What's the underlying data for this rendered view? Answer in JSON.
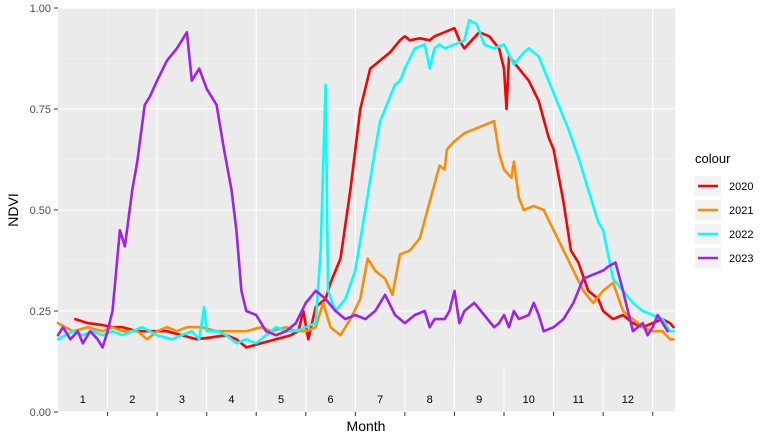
{
  "chart_data": {
    "type": "line",
    "title": "",
    "xlabel": "Month",
    "ylabel": "NDVI",
    "xlim": [
      0,
      12.45
    ],
    "ylim": [
      0,
      1
    ],
    "y_ticks": [
      "0.00",
      "0.25",
      "0.50",
      "0.75",
      "1.00"
    ],
    "month_labels": [
      "1",
      "2",
      "3",
      "4",
      "5",
      "6",
      "7",
      "8",
      "9",
      "10",
      "11",
      "12"
    ],
    "grid": true,
    "legend": {
      "title": "colour",
      "position": "right"
    },
    "series": [
      {
        "name": "2020",
        "color": "#ff0000",
        "points": [
          [
            0.35,
            0.23
          ],
          [
            0.6,
            0.22
          ],
          [
            0.9,
            0.215
          ],
          [
            1.1,
            0.21
          ],
          [
            1.3,
            0.21
          ],
          [
            1.6,
            0.2
          ],
          [
            1.9,
            0.2
          ],
          [
            2.2,
            0.2
          ],
          [
            2.5,
            0.19
          ],
          [
            2.8,
            0.18
          ],
          [
            3.1,
            0.185
          ],
          [
            3.4,
            0.19
          ],
          [
            3.6,
            0.18
          ],
          [
            3.8,
            0.16
          ],
          [
            4.1,
            0.17
          ],
          [
            4.4,
            0.18
          ],
          [
            4.7,
            0.19
          ],
          [
            4.85,
            0.2
          ],
          [
            4.95,
            0.25
          ],
          [
            5.05,
            0.18
          ],
          [
            5.2,
            0.26
          ],
          [
            5.4,
            0.28
          ],
          [
            5.5,
            0.32
          ],
          [
            5.7,
            0.38
          ],
          [
            5.9,
            0.55
          ],
          [
            6.1,
            0.75
          ],
          [
            6.3,
            0.85
          ],
          [
            6.5,
            0.87
          ],
          [
            6.7,
            0.89
          ],
          [
            6.9,
            0.92
          ],
          [
            7.0,
            0.93
          ],
          [
            7.1,
            0.92
          ],
          [
            7.3,
            0.925
          ],
          [
            7.5,
            0.92
          ],
          [
            7.6,
            0.93
          ],
          [
            7.8,
            0.94
          ],
          [
            8.0,
            0.95
          ],
          [
            8.1,
            0.92
          ],
          [
            8.2,
            0.9
          ],
          [
            8.35,
            0.92
          ],
          [
            8.5,
            0.94
          ],
          [
            8.7,
            0.93
          ],
          [
            8.9,
            0.9
          ],
          [
            9.0,
            0.85
          ],
          [
            9.05,
            0.75
          ],
          [
            9.1,
            0.88
          ],
          [
            9.3,
            0.85
          ],
          [
            9.5,
            0.82
          ],
          [
            9.7,
            0.77
          ],
          [
            9.9,
            0.68
          ],
          [
            10.0,
            0.65
          ],
          [
            10.2,
            0.52
          ],
          [
            10.35,
            0.4
          ],
          [
            10.5,
            0.37
          ],
          [
            10.7,
            0.3
          ],
          [
            10.9,
            0.28
          ],
          [
            11.0,
            0.25
          ],
          [
            11.2,
            0.23
          ],
          [
            11.4,
            0.24
          ],
          [
            11.6,
            0.22
          ],
          [
            11.8,
            0.21
          ],
          [
            12.0,
            0.22
          ],
          [
            12.2,
            0.23
          ],
          [
            12.35,
            0.22
          ],
          [
            12.42,
            0.21
          ]
        ]
      },
      {
        "name": "2021",
        "color": "#ff8c00",
        "points": [
          [
            0,
            0.22
          ],
          [
            0.3,
            0.2
          ],
          [
            0.6,
            0.21
          ],
          [
            0.9,
            0.2
          ],
          [
            1.1,
            0.21
          ],
          [
            1.3,
            0.2
          ],
          [
            1.6,
            0.2
          ],
          [
            1.8,
            0.18
          ],
          [
            2.0,
            0.2
          ],
          [
            2.2,
            0.21
          ],
          [
            2.4,
            0.2
          ],
          [
            2.6,
            0.21
          ],
          [
            2.9,
            0.21
          ],
          [
            3.2,
            0.2
          ],
          [
            3.5,
            0.2
          ],
          [
            3.8,
            0.2
          ],
          [
            4.1,
            0.21
          ],
          [
            4.3,
            0.2
          ],
          [
            4.6,
            0.21
          ],
          [
            4.8,
            0.2
          ],
          [
            5.0,
            0.2
          ],
          [
            5.2,
            0.21
          ],
          [
            5.35,
            0.27
          ],
          [
            5.5,
            0.21
          ],
          [
            5.7,
            0.19
          ],
          [
            5.9,
            0.23
          ],
          [
            6.1,
            0.28
          ],
          [
            6.25,
            0.38
          ],
          [
            6.4,
            0.35
          ],
          [
            6.6,
            0.33
          ],
          [
            6.75,
            0.29
          ],
          [
            6.9,
            0.39
          ],
          [
            7.1,
            0.4
          ],
          [
            7.3,
            0.43
          ],
          [
            7.5,
            0.52
          ],
          [
            7.7,
            0.61
          ],
          [
            7.8,
            0.6
          ],
          [
            7.85,
            0.65
          ],
          [
            8.0,
            0.67
          ],
          [
            8.2,
            0.69
          ],
          [
            8.4,
            0.7
          ],
          [
            8.6,
            0.71
          ],
          [
            8.8,
            0.72
          ],
          [
            8.9,
            0.64
          ],
          [
            9.0,
            0.6
          ],
          [
            9.15,
            0.58
          ],
          [
            9.2,
            0.62
          ],
          [
            9.3,
            0.53
          ],
          [
            9.4,
            0.5
          ],
          [
            9.6,
            0.51
          ],
          [
            9.8,
            0.5
          ],
          [
            10.0,
            0.45
          ],
          [
            10.2,
            0.4
          ],
          [
            10.4,
            0.35
          ],
          [
            10.6,
            0.3
          ],
          [
            10.8,
            0.27
          ],
          [
            11.0,
            0.3
          ],
          [
            11.2,
            0.32
          ],
          [
            11.4,
            0.25
          ],
          [
            11.6,
            0.23
          ],
          [
            11.8,
            0.21
          ],
          [
            12.0,
            0.2
          ],
          [
            12.2,
            0.2
          ],
          [
            12.35,
            0.18
          ],
          [
            12.42,
            0.18
          ]
        ]
      },
      {
        "name": "2022",
        "color": "#00ffff",
        "points": [
          [
            0,
            0.18
          ],
          [
            0.3,
            0.2
          ],
          [
            0.5,
            0.19
          ],
          [
            0.7,
            0.2
          ],
          [
            0.9,
            0.19
          ],
          [
            1.1,
            0.2
          ],
          [
            1.3,
            0.19
          ],
          [
            1.5,
            0.2
          ],
          [
            1.7,
            0.21
          ],
          [
            2.0,
            0.19
          ],
          [
            2.3,
            0.18
          ],
          [
            2.5,
            0.19
          ],
          [
            2.7,
            0.2
          ],
          [
            2.85,
            0.18
          ],
          [
            2.95,
            0.26
          ],
          [
            3.0,
            0.2
          ],
          [
            3.2,
            0.2
          ],
          [
            3.4,
            0.19
          ],
          [
            3.6,
            0.17
          ],
          [
            3.8,
            0.18
          ],
          [
            4.0,
            0.17
          ],
          [
            4.2,
            0.19
          ],
          [
            4.4,
            0.21
          ],
          [
            4.6,
            0.2
          ],
          [
            4.8,
            0.2
          ],
          [
            5.0,
            0.21
          ],
          [
            5.2,
            0.22
          ],
          [
            5.3,
            0.4
          ],
          [
            5.4,
            0.81
          ],
          [
            5.45,
            0.3
          ],
          [
            5.6,
            0.25
          ],
          [
            5.8,
            0.28
          ],
          [
            6.0,
            0.35
          ],
          [
            6.2,
            0.5
          ],
          [
            6.4,
            0.65
          ],
          [
            6.5,
            0.72
          ],
          [
            6.6,
            0.75
          ],
          [
            6.7,
            0.78
          ],
          [
            6.8,
            0.81
          ],
          [
            6.9,
            0.82
          ],
          [
            7.0,
            0.85
          ],
          [
            7.2,
            0.9
          ],
          [
            7.4,
            0.91
          ],
          [
            7.5,
            0.85
          ],
          [
            7.6,
            0.9
          ],
          [
            7.7,
            0.91
          ],
          [
            7.8,
            0.9
          ],
          [
            8.0,
            0.91
          ],
          [
            8.2,
            0.92
          ],
          [
            8.3,
            0.97
          ],
          [
            8.45,
            0.96
          ],
          [
            8.6,
            0.91
          ],
          [
            8.8,
            0.9
          ],
          [
            9.0,
            0.91
          ],
          [
            9.2,
            0.86
          ],
          [
            9.4,
            0.89
          ],
          [
            9.5,
            0.9
          ],
          [
            9.7,
            0.88
          ],
          [
            9.9,
            0.82
          ],
          [
            10.1,
            0.76
          ],
          [
            10.3,
            0.7
          ],
          [
            10.5,
            0.63
          ],
          [
            10.7,
            0.55
          ],
          [
            10.9,
            0.47
          ],
          [
            11.0,
            0.45
          ],
          [
            11.2,
            0.33
          ],
          [
            11.4,
            0.3
          ],
          [
            11.6,
            0.27
          ],
          [
            11.8,
            0.25
          ],
          [
            12.0,
            0.24
          ],
          [
            12.2,
            0.23
          ],
          [
            12.35,
            0.2
          ],
          [
            12.42,
            0.2
          ]
        ]
      },
      {
        "name": "2023",
        "color": "#a020f0",
        "points": [
          [
            0,
            0.19
          ],
          [
            0.1,
            0.21
          ],
          [
            0.25,
            0.18
          ],
          [
            0.4,
            0.2
          ],
          [
            0.5,
            0.17
          ],
          [
            0.65,
            0.2
          ],
          [
            0.8,
            0.18
          ],
          [
            0.9,
            0.16
          ],
          [
            1.0,
            0.2
          ],
          [
            1.1,
            0.25
          ],
          [
            1.25,
            0.45
          ],
          [
            1.35,
            0.41
          ],
          [
            1.5,
            0.55
          ],
          [
            1.6,
            0.62
          ],
          [
            1.75,
            0.76
          ],
          [
            1.85,
            0.78
          ],
          [
            2.0,
            0.82
          ],
          [
            2.2,
            0.87
          ],
          [
            2.4,
            0.9
          ],
          [
            2.55,
            0.93
          ],
          [
            2.6,
            0.94
          ],
          [
            2.7,
            0.82
          ],
          [
            2.85,
            0.85
          ],
          [
            3.0,
            0.8
          ],
          [
            3.2,
            0.76
          ],
          [
            3.35,
            0.65
          ],
          [
            3.5,
            0.55
          ],
          [
            3.6,
            0.45
          ],
          [
            3.7,
            0.3
          ],
          [
            3.8,
            0.25
          ],
          [
            4.0,
            0.24
          ],
          [
            4.2,
            0.2
          ],
          [
            4.4,
            0.19
          ],
          [
            4.6,
            0.2
          ],
          [
            4.8,
            0.22
          ],
          [
            5.0,
            0.27
          ],
          [
            5.2,
            0.3
          ],
          [
            5.4,
            0.28
          ],
          [
            5.6,
            0.25
          ],
          [
            5.8,
            0.23
          ],
          [
            6.0,
            0.24
          ],
          [
            6.2,
            0.23
          ],
          [
            6.4,
            0.25
          ],
          [
            6.6,
            0.29
          ],
          [
            6.8,
            0.24
          ],
          [
            7.0,
            0.22
          ],
          [
            7.2,
            0.24
          ],
          [
            7.4,
            0.25
          ],
          [
            7.5,
            0.21
          ],
          [
            7.6,
            0.23
          ],
          [
            7.8,
            0.23
          ],
          [
            7.9,
            0.25
          ],
          [
            8.0,
            0.3
          ],
          [
            8.1,
            0.22
          ],
          [
            8.2,
            0.25
          ],
          [
            8.4,
            0.27
          ],
          [
            8.6,
            0.24
          ],
          [
            8.8,
            0.21
          ],
          [
            8.9,
            0.22
          ],
          [
            9.0,
            0.24
          ],
          [
            9.1,
            0.21
          ],
          [
            9.2,
            0.25
          ],
          [
            9.3,
            0.23
          ],
          [
            9.5,
            0.24
          ],
          [
            9.6,
            0.27
          ],
          [
            9.7,
            0.24
          ],
          [
            9.8,
            0.2
          ],
          [
            10.0,
            0.21
          ],
          [
            10.2,
            0.23
          ],
          [
            10.4,
            0.27
          ],
          [
            10.6,
            0.33
          ],
          [
            10.8,
            0.34
          ],
          [
            11.0,
            0.35
          ],
          [
            11.1,
            0.36
          ],
          [
            11.25,
            0.37
          ],
          [
            11.4,
            0.3
          ],
          [
            11.5,
            0.25
          ],
          [
            11.6,
            0.2
          ],
          [
            11.8,
            0.22
          ],
          [
            11.9,
            0.19
          ],
          [
            12.0,
            0.21
          ],
          [
            12.1,
            0.24
          ],
          [
            12.2,
            0.22
          ],
          [
            12.3,
            0.2
          ]
        ]
      }
    ]
  }
}
